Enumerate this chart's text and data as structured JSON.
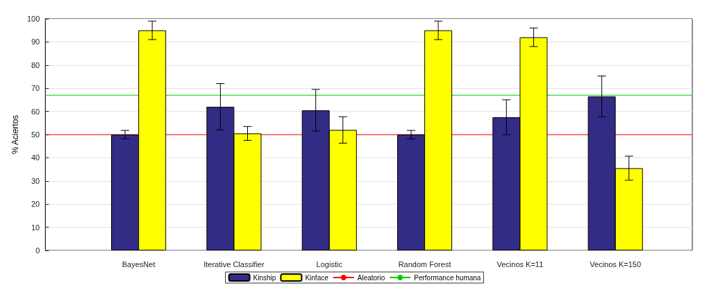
{
  "chart_data": {
    "type": "bar",
    "ylabel": "% Aciertos",
    "categories": [
      "BayesNet",
      "Iterative Classifier",
      "Logistic",
      "Random Forest",
      "Vecinos K=11",
      "Vecinos K=150"
    ],
    "series": [
      {
        "name": "Kinship",
        "color": "#332c85",
        "values": [
          50,
          62,
          60.5,
          50,
          57.5,
          66.5
        ],
        "errors": [
          1.8,
          10,
          9,
          1.8,
          7.5,
          8.8
        ]
      },
      {
        "name": "Kinface",
        "color": "#ffff00",
        "values": [
          95,
          50.5,
          52,
          95,
          92,
          35.5
        ],
        "errors": [
          4,
          3,
          5.7,
          4,
          4,
          5.2
        ]
      }
    ],
    "ref_lines": [
      {
        "axis": "y",
        "value": 50,
        "label": "Aleatorio",
        "color": "#ff0000"
      },
      {
        "axis": "y",
        "value": 67,
        "label": "Performance humana",
        "color": "#00cc00"
      }
    ],
    "ylim": [
      0,
      100
    ],
    "yticks": [
      0,
      10,
      20,
      30,
      40,
      50,
      60,
      70,
      80,
      90,
      100
    ],
    "grid": "y",
    "legend": "bottom"
  }
}
